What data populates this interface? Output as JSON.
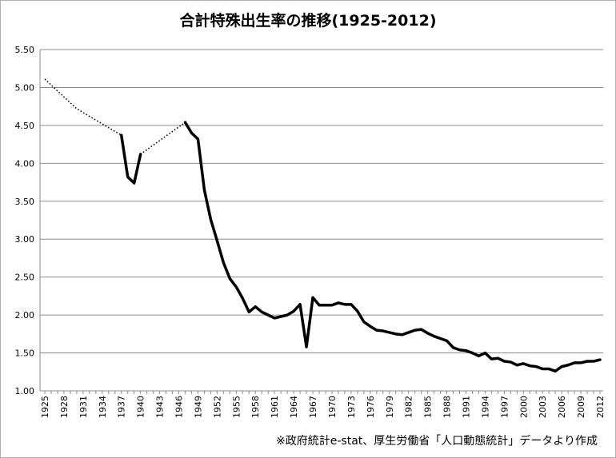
{
  "chart_data": {
    "type": "line",
    "title": "合計特殊出生率の推移(1925-2012)",
    "source_note": "※政府統計e-stat、厚生労働省「人口動態統計」データより作成",
    "xlabel": "",
    "ylabel": "",
    "ylim": [
      1.0,
      5.5
    ],
    "yticks": [
      "1.00",
      "1.50",
      "2.00",
      "2.50",
      "3.00",
      "3.50",
      "4.00",
      "4.50",
      "5.00",
      "5.50"
    ],
    "xticks": [
      "1925",
      "1928",
      "1931",
      "1934",
      "1937",
      "1940",
      "1943",
      "1946",
      "1949",
      "1952",
      "1955",
      "1958",
      "1961",
      "1964",
      "1967",
      "1970",
      "1973",
      "1976",
      "1979",
      "1982",
      "1985",
      "1988",
      "1991",
      "1994",
      "1997",
      "2000",
      "2003",
      "2006",
      "2009",
      "2012"
    ],
    "grid": true,
    "legend": "none",
    "series": [
      {
        "style": "dotted",
        "segments": [
          [
            [
              1925,
              5.11
            ],
            [
              1930,
              4.72
            ],
            [
              1937,
              4.37
            ]
          ],
          [
            [
              1940,
              4.12
            ],
            [
              1947,
              4.54
            ]
          ]
        ]
      },
      {
        "style": "solid",
        "x": [
          1937,
          1938,
          1939,
          1940,
          1941,
          1942,
          1943,
          1944,
          1945,
          1946,
          1947,
          1948,
          1949,
          1950,
          1951,
          1952,
          1953,
          1954,
          1955,
          1956,
          1957,
          1958,
          1959,
          1960,
          1961,
          1962,
          1963,
          1964,
          1965,
          1966,
          1967,
          1968,
          1969,
          1970,
          1971,
          1972,
          1973,
          1974,
          1975,
          1976,
          1977,
          1978,
          1979,
          1980,
          1981,
          1982,
          1983,
          1984,
          1985,
          1986,
          1987,
          1988,
          1989,
          1990,
          1991,
          1992,
          1993,
          1994,
          1995,
          1996,
          1997,
          1998,
          1999,
          2000,
          2001,
          2002,
          2003,
          2004,
          2005,
          2006,
          2007,
          2008,
          2009,
          2010,
          2011,
          2012
        ],
        "values": [
          4.37,
          3.82,
          3.74,
          4.12,
          null,
          null,
          null,
          null,
          null,
          null,
          4.54,
          4.4,
          4.32,
          3.65,
          3.26,
          2.98,
          2.69,
          2.48,
          2.37,
          2.22,
          2.04,
          2.11,
          2.04,
          2.0,
          1.96,
          1.98,
          2.0,
          2.05,
          2.14,
          1.58,
          2.23,
          2.13,
          2.13,
          2.13,
          2.16,
          2.14,
          2.14,
          2.05,
          1.91,
          1.85,
          1.8,
          1.79,
          1.77,
          1.75,
          1.74,
          1.77,
          1.8,
          1.81,
          1.76,
          1.72,
          1.69,
          1.66,
          1.57,
          1.54,
          1.53,
          1.5,
          1.46,
          1.5,
          1.42,
          1.43,
          1.39,
          1.38,
          1.34,
          1.36,
          1.33,
          1.32,
          1.29,
          1.29,
          1.26,
          1.32,
          1.34,
          1.37,
          1.37,
          1.39,
          1.39,
          1.41
        ]
      }
    ]
  }
}
